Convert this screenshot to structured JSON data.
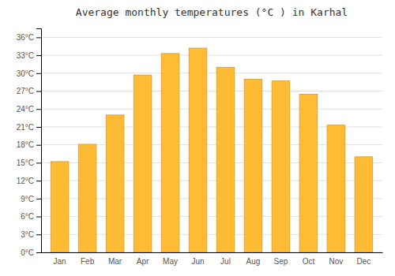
{
  "chart_data": {
    "type": "bar",
    "title": "Average monthly temperatures (°C ) in Karhal",
    "categories": [
      "Jan",
      "Feb",
      "Mar",
      "Apr",
      "May",
      "Jun",
      "Jul",
      "Aug",
      "Sep",
      "Oct",
      "Nov",
      "Dec"
    ],
    "values": [
      15.2,
      18.1,
      23.0,
      29.7,
      33.3,
      34.2,
      31.0,
      29.0,
      28.7,
      26.5,
      21.3,
      16.0
    ],
    "color": "#FFBB33",
    "ylim": [
      0,
      37.5
    ],
    "yticks": [
      {
        "value": 0,
        "label": "0°C"
      },
      {
        "value": 3,
        "label": "3°C"
      },
      {
        "value": 6,
        "label": "6°C"
      },
      {
        "value": 9,
        "label": "9°C"
      },
      {
        "value": 12,
        "label": "12°C"
      },
      {
        "value": 15,
        "label": "15°C"
      },
      {
        "value": 18,
        "label": "18°C"
      },
      {
        "value": 21,
        "label": "21°C"
      },
      {
        "value": 24,
        "label": "24°C"
      },
      {
        "value": 27,
        "label": "27°C"
      },
      {
        "value": 30,
        "label": "30°C"
      },
      {
        "value": 33,
        "label": "33°C"
      },
      {
        "value": 36,
        "label": "36°C"
      }
    ],
    "grid": true
  }
}
